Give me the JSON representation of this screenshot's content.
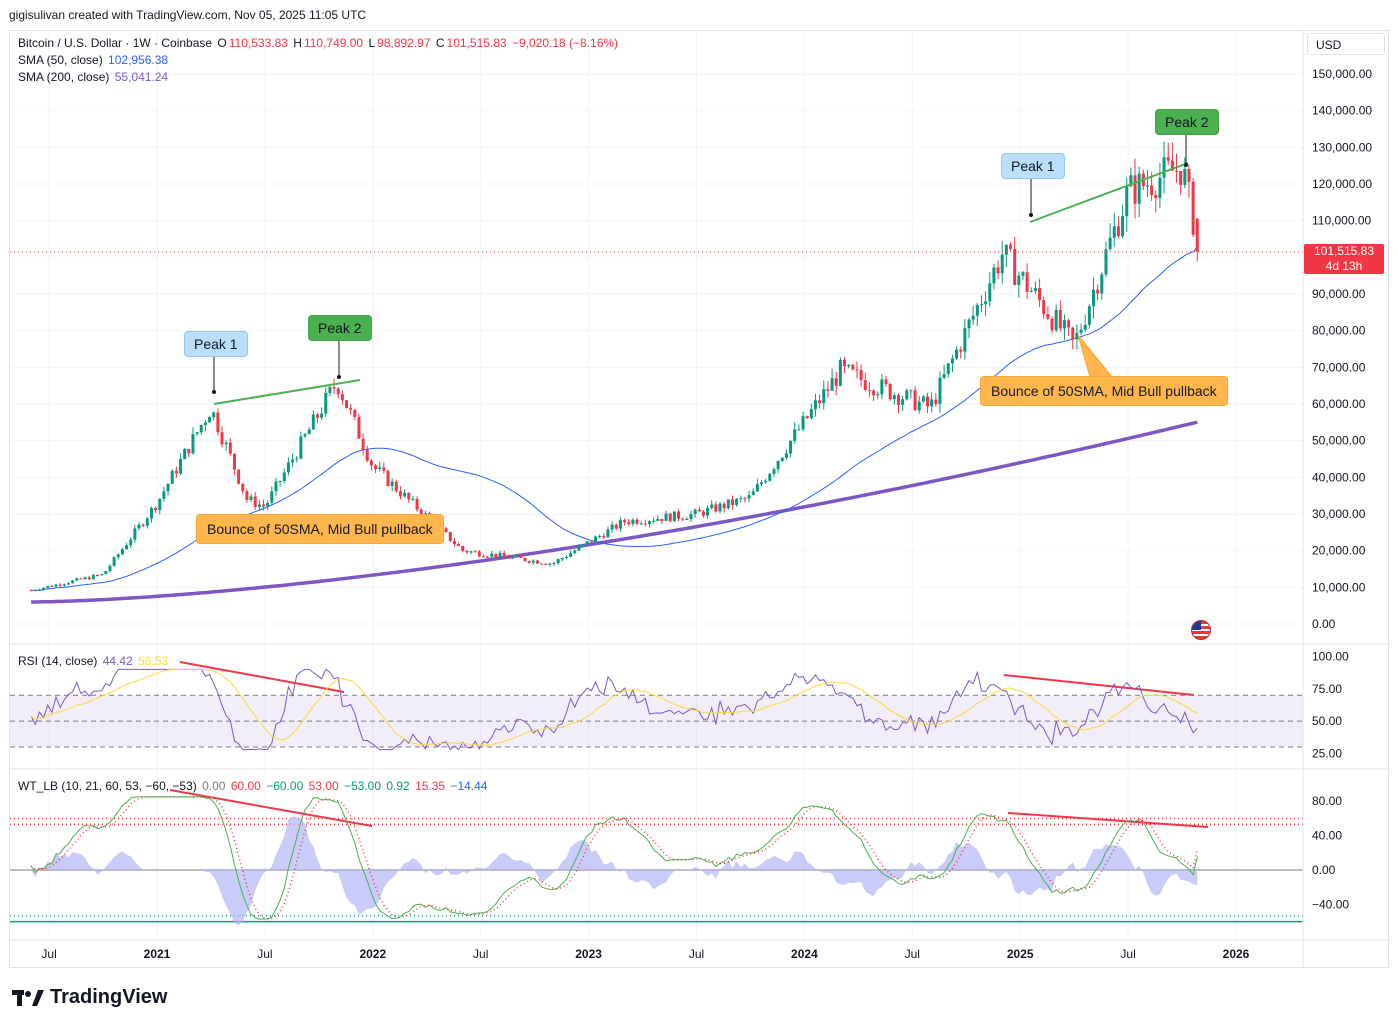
{
  "header": {
    "caption": "gigisulivan created with TradingView.com, Nov 05, 2025 11:05 UTC"
  },
  "legend": {
    "symbol": "Bitcoin / U.S. Dollar · 1W · Coinbase",
    "o_label": "O",
    "o": "110,533.83",
    "h_label": "H",
    "h": "110,749.00",
    "l_label": "L",
    "l": "98,892.97",
    "c_label": "C",
    "c": "101,515.83",
    "change": "−9,020.18 (−8.16%)",
    "sma50_label": "SMA (50, close)",
    "sma50_value": "102,956.38",
    "sma200_label": "SMA (200, close)",
    "sma200_value": "55,041.24",
    "rsi_label": "RSI (14, close)",
    "rsi_value": "44.42",
    "rsi_ma": "56.53",
    "wt_label": "WT_LB (10, 21, 60, 53, −60, −53)",
    "wt_values": [
      "0.00",
      "60.00",
      "−60.00",
      "53.00",
      "−53.00",
      "0.92",
      "15.35",
      "−14.44"
    ]
  },
  "currency_button": "USD",
  "last_price": {
    "value": "101,515.83",
    "countdown": "4d 13h"
  },
  "annotations": {
    "peak1_left": "Peak 1",
    "peak2_left": "Peak 2",
    "bounce_left": "Bounce of 50SMA, Mid Bull pullback",
    "peak1_right": "Peak 1",
    "peak2_right": "Peak 2",
    "bounce_right": "Bounce of 50SMA, Mid Bull pullback"
  },
  "brand": "TradingView",
  "colors": {
    "up": "#089981",
    "down": "#f23645",
    "sma50": "#2962ff",
    "sma200": "#7e57c2",
    "trend_green": "#4caf50",
    "trend_red": "#f23645",
    "rsi": "#7e57c2",
    "rsi_ma": "#fdd835",
    "wt1": "#4caf50",
    "wt2": "#f23645",
    "wt_hist": "#b2b5f5"
  },
  "chart_data": [
    {
      "type": "candlestick",
      "title": "Bitcoin / U.S. Dollar · 1W · Coinbase",
      "y_ticks": [
        "150,000.00",
        "140,000.00",
        "130,000.00",
        "120,000.00",
        "110,000.00",
        "100,000.00",
        "90,000.00",
        "80,000.00",
        "70,000.00",
        "60,000.00",
        "50,000.00",
        "40,000.00",
        "30,000.00",
        "20,000.00",
        "10,000.00",
        "0.00"
      ],
      "x_ticks": [
        "Jul",
        "2021",
        "Jul",
        "2022",
        "Jul",
        "2023",
        "Jul",
        "2024",
        "Jul",
        "2025",
        "Jul",
        "2026"
      ],
      "ylim": [
        0,
        150000
      ],
      "key_points": {
        "x": [
          "2020-06",
          "2020-10",
          "2021-01",
          "2021-04",
          "2021-06",
          "2021-07",
          "2021-11",
          "2022-01",
          "2022-06",
          "2022-11",
          "2023-03",
          "2023-07",
          "2023-10",
          "2024-03",
          "2024-08",
          "2024-12",
          "2025-04",
          "2025-07",
          "2025-10",
          "2025-11"
        ],
        "close": [
          9200,
          13500,
          33000,
          59000,
          34000,
          32000,
          66000,
          43000,
          20000,
          16500,
          28000,
          30000,
          34500,
          69000,
          59000,
          101000,
          76000,
          118000,
          124700,
          101515.83
        ]
      },
      "sma50_end": 102956.38,
      "sma200_end": 55041.24
    },
    {
      "type": "line",
      "title": "RSI (14, close)",
      "y_ticks": [
        "100.00",
        "75.00",
        "50.00",
        "25.00"
      ],
      "ylim": [
        25,
        100
      ],
      "bands": [
        70,
        50,
        30
      ],
      "last": 44.42,
      "ma_last": 56.53
    },
    {
      "type": "line",
      "title": "WT_LB (10, 21, 60, 53, −60, −53)",
      "y_ticks": [
        "80.00",
        "40.00",
        "0.00",
        "−40.00"
      ],
      "levels": [
        60,
        53,
        0,
        -53,
        -60
      ],
      "last": [
        0.92,
        15.35,
        -14.44
      ]
    }
  ]
}
